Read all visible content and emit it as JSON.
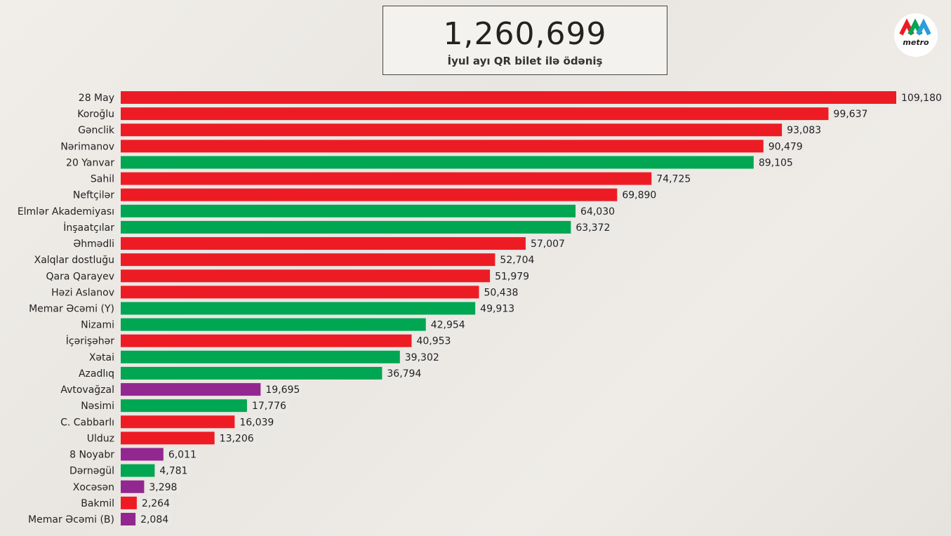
{
  "kpi": {
    "value": "1,260,699",
    "caption": "İyul ayı QR bilet ilə ödəniş"
  },
  "logo": {
    "text": "metro"
  },
  "chart_data": {
    "type": "bar",
    "orientation": "horizontal",
    "categories": [
      "28 May",
      "Koroğlu",
      "Gənclik",
      "Nərimanov",
      "20 Yanvar",
      "Sahil",
      "Neftçilər",
      "Elmlər Akademiyası",
      "İnşaatçılar",
      "Əhmədli",
      "Xalqlar dostluğu",
      "Qara Qarayev",
      "Həzi Aslanov",
      "Memar Əcəmi (Y)",
      "Nizami",
      "İçərişəhər",
      "Xətai",
      "Azadlıq",
      "Avtovağzal",
      "Nəsimi",
      "C. Cabbarlı",
      "Ulduz",
      "8 Noyabr",
      "Dərnəgül",
      "Xocəsən",
      "Bakmil",
      "Memar Əcəmi (B)"
    ],
    "values": [
      109180,
      99637,
      93083,
      90479,
      89105,
      74725,
      69890,
      64030,
      63372,
      57007,
      52704,
      51979,
      50438,
      49913,
      42954,
      40953,
      39302,
      36794,
      19695,
      17776,
      16039,
      13206,
      6011,
      4781,
      3298,
      2264,
      2084
    ],
    "value_labels": [
      "109,180",
      "99,637",
      "93,083",
      "90,479",
      "89,105",
      "74,725",
      "69,890",
      "64,030",
      "63,372",
      "57,007",
      "52,704",
      "51,979",
      "50,438",
      "49,913",
      "42,954",
      "40,953",
      "39,302",
      "36,794",
      "19,695",
      "17,776",
      "16,039",
      "13,206",
      "6,011",
      "4,781",
      "3,298",
      "2,264",
      "2,084"
    ],
    "colors": [
      "#ed1c24",
      "#ed1c24",
      "#ed1c24",
      "#ed1c24",
      "#00a651",
      "#ed1c24",
      "#ed1c24",
      "#00a651",
      "#00a651",
      "#ed1c24",
      "#ed1c24",
      "#ed1c24",
      "#ed1c24",
      "#00a651",
      "#00a651",
      "#ed1c24",
      "#00a651",
      "#00a651",
      "#92278f",
      "#00a651",
      "#ed1c24",
      "#ed1c24",
      "#92278f",
      "#00a651",
      "#92278f",
      "#ed1c24",
      "#92278f"
    ]
  }
}
